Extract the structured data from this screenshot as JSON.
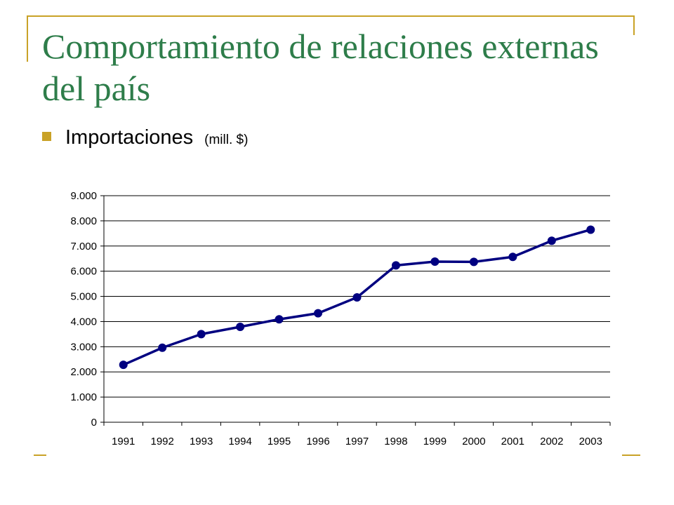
{
  "slide": {
    "title": "Comportamiento de relaciones externas del país",
    "bullet": {
      "text": "Importaciones",
      "unit": "(mill. $)"
    },
    "accent_color": "#c9a227",
    "title_color": "#2e7d4a"
  },
  "chart_data": {
    "type": "line",
    "categories": [
      "1991",
      "1992",
      "1993",
      "1994",
      "1995",
      "1996",
      "1997",
      "1998",
      "1999",
      "2000",
      "2001",
      "2002",
      "2003"
    ],
    "series": [
      {
        "values": [
          2280,
          2960,
          3500,
          3790,
          4090,
          4330,
          4960,
          6230,
          6380,
          6370,
          6570,
          7210,
          7650
        ],
        "color": "#000080"
      }
    ],
    "yticks": [
      0,
      1000,
      2000,
      3000,
      4000,
      5000,
      6000,
      7000,
      8000,
      9000
    ],
    "ytick_labels": [
      "0",
      "1.000",
      "2.000",
      "3.000",
      "4.000",
      "5.000",
      "6.000",
      "7.000",
      "8.000",
      "9.000"
    ],
    "ylim": [
      0,
      9000
    ],
    "grid": true,
    "legend": "none",
    "title": "",
    "xlabel": "",
    "ylabel": ""
  }
}
